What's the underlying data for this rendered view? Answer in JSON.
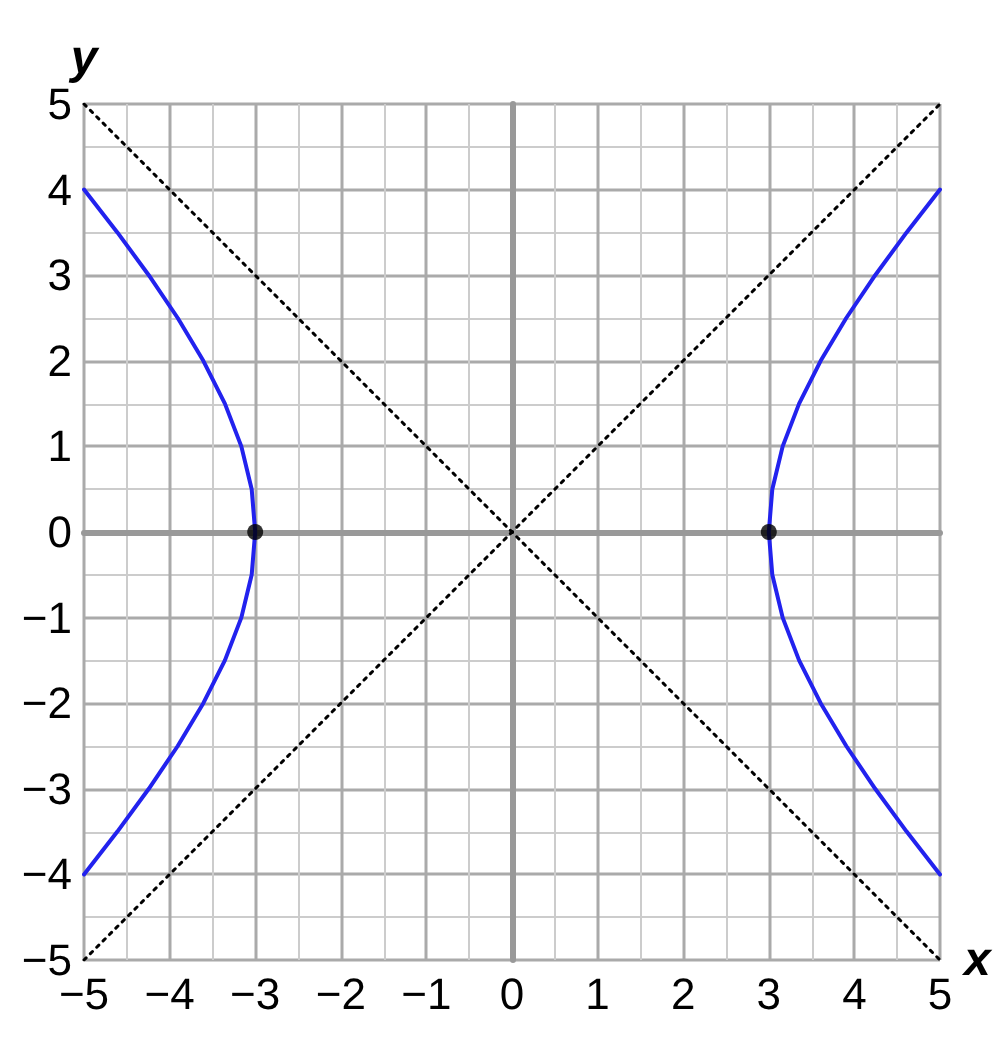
{
  "chart_data": {
    "type": "line",
    "xlabel": "x",
    "ylabel": "y",
    "xlim": [
      -5,
      5
    ],
    "ylim": [
      -5,
      5
    ],
    "xticks": [
      {
        "value": -5,
        "label": "−5"
      },
      {
        "value": -4,
        "label": "−4"
      },
      {
        "value": -3,
        "label": "−3"
      },
      {
        "value": -2,
        "label": "−2"
      },
      {
        "value": -1,
        "label": "−1"
      },
      0,
      1,
      2,
      3,
      4,
      5
    ],
    "yticks": [
      {
        "value": -5,
        "label": "−5"
      },
      {
        "value": -4,
        "label": "−4"
      },
      {
        "value": -3,
        "label": "−3"
      },
      {
        "value": -2,
        "label": "−2"
      },
      {
        "value": -1,
        "label": "−1"
      },
      0,
      1,
      2,
      3,
      4,
      5
    ],
    "grid": true,
    "series": [
      {
        "color": "#2222ee",
        "marker": "none",
        "line_style": "solid",
        "x": [
          5,
          4.61,
          4.243,
          3.905,
          3.606,
          3.354,
          3.162,
          3.041,
          3,
          3.041,
          3.162,
          3.354,
          3.606,
          3.905,
          4.243,
          4.61,
          5
        ],
        "values": [
          -4,
          -3.5,
          -3,
          -2.5,
          -2,
          -1.5,
          -1,
          -0.5,
          0,
          0.5,
          1,
          1.5,
          2,
          2.5,
          3,
          3.5,
          4
        ]
      },
      {
        "color": "#2222ee",
        "marker": "none",
        "line_style": "solid",
        "x": [
          -5,
          -4.61,
          -4.243,
          -3.905,
          -3.606,
          -3.354,
          -3.162,
          -3.041,
          -3,
          -3.041,
          -3.162,
          -3.354,
          -3.606,
          -3.905,
          -4.243,
          -4.61,
          -5
        ],
        "values": [
          -4,
          -3.5,
          -3,
          -2.5,
          -2,
          -1.5,
          -1,
          -0.5,
          0,
          0.5,
          1,
          1.5,
          2,
          2.5,
          3,
          3.5,
          4
        ]
      },
      {
        "color": "#000000",
        "marker": "none",
        "line_style": "dotted",
        "x": [
          -5,
          5
        ],
        "values": [
          -5,
          5
        ]
      },
      {
        "color": "#000000",
        "marker": "none",
        "line_style": "dotted",
        "x": [
          -5,
          5
        ],
        "values": [
          5,
          -5
        ]
      },
      {
        "type": "scatter",
        "color": "#000000",
        "marker": "circle",
        "x": [
          -3,
          3
        ],
        "values": [
          0,
          0
        ]
      }
    ]
  }
}
